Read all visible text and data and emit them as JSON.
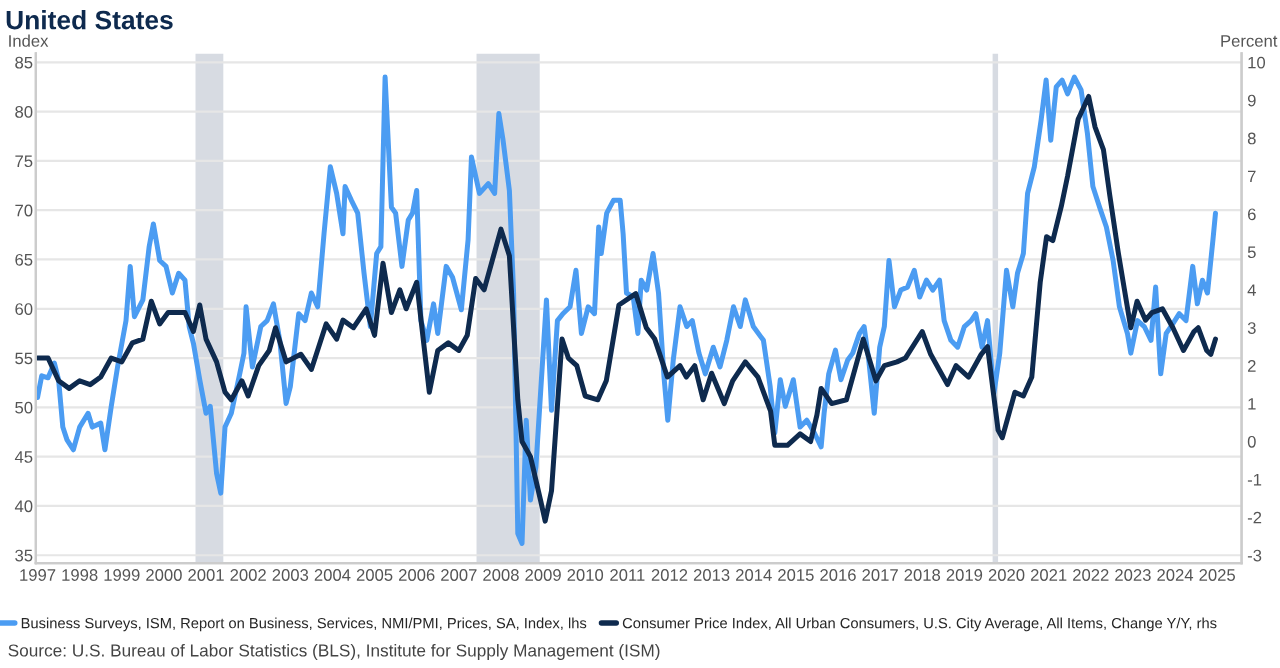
{
  "chart_data": {
    "type": "line",
    "title": "United States",
    "ylabel": "Index",
    "y2label": "Percent",
    "xlim": [
      1997.46,
      2026.08
    ],
    "ylim": [
      34.2,
      85.9
    ],
    "y2lim": [
      -3.208,
      10.234
    ],
    "xticks": [
      {
        "value": 1997.5,
        "label": "1997"
      },
      {
        "value": 1998.5,
        "label": "1998"
      },
      {
        "value": 1999.5,
        "label": "1999"
      },
      {
        "value": 2000.5,
        "label": "2000"
      },
      {
        "value": 2001.5,
        "label": "2001"
      },
      {
        "value": 2002.5,
        "label": "2002"
      },
      {
        "value": 2003.5,
        "label": "2003"
      },
      {
        "value": 2004.5,
        "label": "2004"
      },
      {
        "value": 2005.5,
        "label": "2005"
      },
      {
        "value": 2006.5,
        "label": "2006"
      },
      {
        "value": 2007.5,
        "label": "2007"
      },
      {
        "value": 2008.5,
        "label": "2008"
      },
      {
        "value": 2009.5,
        "label": "2009"
      },
      {
        "value": 2010.5,
        "label": "2010"
      },
      {
        "value": 2011.5,
        "label": "2011"
      },
      {
        "value": 2012.5,
        "label": "2012"
      },
      {
        "value": 2013.5,
        "label": "2013"
      },
      {
        "value": 2014.5,
        "label": "2014"
      },
      {
        "value": 2015.5,
        "label": "2015"
      },
      {
        "value": 2016.5,
        "label": "2016"
      },
      {
        "value": 2017.5,
        "label": "2017"
      },
      {
        "value": 2018.5,
        "label": "2018"
      },
      {
        "value": 2019.5,
        "label": "2019"
      },
      {
        "value": 2020.5,
        "label": "2020"
      },
      {
        "value": 2021.5,
        "label": "2021"
      },
      {
        "value": 2022.5,
        "label": "2022"
      },
      {
        "value": 2023.5,
        "label": "2023"
      },
      {
        "value": 2024.5,
        "label": "2024"
      },
      {
        "value": 2025.5,
        "label": "2025"
      }
    ],
    "yticks": [
      35,
      40,
      45,
      50,
      55,
      60,
      65,
      70,
      75,
      80,
      85
    ],
    "y2ticks": [
      -3,
      -2,
      -1,
      0,
      1,
      2,
      3,
      4,
      5,
      6,
      7,
      8,
      9,
      10
    ],
    "grid": "y",
    "legend": "bottom",
    "bands": [
      {
        "axis": "x",
        "from": 2001.25,
        "to": 2001.91,
        "color": "#d7dbe2"
      },
      {
        "axis": "x",
        "from": 2007.92,
        "to": 2009.42,
        "color": "#d7dbe2"
      },
      {
        "axis": "x",
        "from": 2020.17,
        "to": 2020.3,
        "color": "#d7dbe2"
      }
    ],
    "series": [
      {
        "name": "Business Surveys, ISM, Report on Business, Services, NMI/PMI, Prices, SA, Index, lhs",
        "color": "#4b9cf2",
        "axis": "y",
        "x": [
          1997.5,
          1997.6,
          1997.75,
          1997.9,
          1998.0,
          1998.1,
          1998.2,
          1998.35,
          1998.5,
          1998.7,
          1998.8,
          1999.0,
          1999.1,
          1999.25,
          1999.4,
          1999.6,
          1999.7,
          1999.8,
          2000.0,
          2000.15,
          2000.25,
          2000.4,
          2000.55,
          2000.7,
          2000.85,
          2001.0,
          2001.1,
          2001.2,
          2001.35,
          2001.5,
          2001.6,
          2001.75,
          2001.85,
          2001.95,
          2002.1,
          2002.3,
          2002.4,
          2002.45,
          2002.6,
          2002.8,
          2002.95,
          2003.1,
          2003.25,
          2003.4,
          2003.5,
          2003.7,
          2003.85,
          2004.0,
          2004.15,
          2004.3,
          2004.45,
          2004.6,
          2004.75,
          2004.8,
          2004.95,
          2005.1,
          2005.25,
          2005.4,
          2005.55,
          2005.65,
          2005.75,
          2005.9,
          2006.0,
          2006.15,
          2006.3,
          2006.4,
          2006.5,
          2006.6,
          2006.74,
          2006.9,
          2007.0,
          2007.2,
          2007.35,
          2007.56,
          2007.72,
          2007.8,
          2007.99,
          2008.2,
          2008.35,
          2008.45,
          2008.55,
          2008.7,
          2008.8,
          2008.9,
          2009.0,
          2009.1,
          2009.2,
          2009.33,
          2009.46,
          2009.58,
          2009.7,
          2009.84,
          2009.97,
          2010.14,
          2010.28,
          2010.41,
          2010.57,
          2010.72,
          2010.82,
          2010.88,
          2011.01,
          2011.17,
          2011.33,
          2011.4,
          2011.48,
          2011.64,
          2011.75,
          2011.83,
          2011.96,
          2012.11,
          2012.24,
          2012.37,
          2012.46,
          2012.59,
          2012.75,
          2012.91,
          2013.04,
          2013.2,
          2013.35,
          2013.54,
          2013.7,
          2013.86,
          2014.02,
          2014.18,
          2014.3,
          2014.49,
          2014.73,
          2014.89,
          2015.0,
          2015.13,
          2015.25,
          2015.44,
          2015.6,
          2015.76,
          2015.94,
          2016.1,
          2016.17,
          2016.28,
          2016.44,
          2016.57,
          2016.73,
          2016.85,
          2017.01,
          2017.12,
          2017.23,
          2017.36,
          2017.49,
          2017.6,
          2017.71,
          2017.84,
          2017.99,
          2018.15,
          2018.31,
          2018.44,
          2018.6,
          2018.75,
          2018.91,
          2019.02,
          2019.18,
          2019.34,
          2019.5,
          2019.66,
          2019.77,
          2019.92,
          2020.05,
          2020.2,
          2020.34,
          2020.5,
          2020.65,
          2020.76,
          2020.9,
          2021.0,
          2021.16,
          2021.32,
          2021.44,
          2021.55,
          2021.68,
          2021.82,
          2021.95,
          2022.11,
          2022.27,
          2022.42,
          2022.55,
          2022.71,
          2022.87,
          2023.03,
          2023.18,
          2023.37,
          2023.45,
          2023.61,
          2023.77,
          2023.93,
          2024.04,
          2024.16,
          2024.29,
          2024.45,
          2024.6,
          2024.76,
          2024.92,
          2025.03,
          2025.15,
          2025.27,
          2025.4,
          2025.46
        ],
        "values": [
          51.0,
          53.2,
          53.0,
          54.5,
          52.8,
          48.0,
          46.7,
          45.7,
          48.0,
          49.4,
          48.0,
          48.4,
          45.7,
          50.1,
          54.1,
          58.8,
          64.3,
          59.2,
          60.9,
          66.3,
          68.6,
          64.9,
          64.3,
          61.6,
          63.6,
          62.9,
          58.2,
          56.5,
          52.8,
          49.4,
          50.1,
          43.3,
          41.3,
          48.0,
          49.4,
          53.4,
          55.5,
          60.2,
          54.1,
          58.2,
          58.8,
          60.5,
          56.8,
          50.4,
          52.1,
          59.5,
          58.8,
          61.6,
          60.2,
          67.6,
          74.4,
          71.7,
          67.6,
          72.4,
          71.0,
          69.7,
          63.6,
          58.2,
          65.6,
          66.3,
          83.5,
          70.3,
          69.7,
          64.3,
          69.0,
          69.7,
          72.0,
          58.8,
          56.8,
          60.5,
          57.5,
          64.3,
          63.2,
          59.9,
          67.0,
          75.4,
          71.7,
          72.7,
          71.7,
          79.8,
          77.1,
          72.0,
          61.6,
          37.2,
          36.2,
          48.7,
          40.6,
          44.0,
          52.8,
          60.9,
          49.7,
          58.8,
          59.5,
          60.2,
          63.9,
          57.5,
          60.2,
          59.5,
          68.3,
          65.6,
          69.7,
          71.0,
          71.0,
          67.6,
          61.6,
          61.2,
          57.5,
          62.9,
          61.9,
          65.6,
          61.6,
          53.1,
          48.7,
          54.8,
          60.2,
          58.2,
          58.8,
          55.5,
          53.4,
          56.1,
          54.1,
          56.8,
          60.2,
          58.2,
          60.9,
          58.2,
          56.8,
          52.1,
          47.4,
          52.8,
          50.1,
          52.8,
          48.0,
          48.7,
          47.4,
          46.0,
          49.4,
          53.4,
          55.8,
          52.8,
          54.8,
          55.5,
          57.5,
          58.2,
          54.8,
          49.4,
          56.1,
          58.2,
          64.9,
          60.2,
          61.9,
          62.2,
          63.9,
          61.2,
          62.9,
          61.9,
          62.9,
          58.8,
          56.8,
          56.1,
          58.2,
          58.8,
          59.5,
          56.1,
          58.8,
          51.4,
          55.5,
          63.9,
          60.2,
          63.6,
          65.6,
          71.7,
          74.4,
          79.1,
          83.2,
          77.1,
          82.5,
          83.2,
          81.8,
          83.5,
          82.2,
          77.8,
          72.4,
          70.3,
          68.3,
          64.9,
          60.2,
          57.5,
          55.5,
          58.8,
          58.2,
          56.8,
          62.2,
          53.4,
          57.5,
          58.5,
          59.5,
          58.8,
          64.3,
          60.5,
          62.9,
          61.6,
          67.0,
          69.7
        ]
      },
      {
        "name": "Consumer Price Index, All Urban Consumers, U.S. City Average, All Items, Change Y/Y, rhs",
        "color": "#0e2a4e",
        "axis": "y2",
        "x": [
          1997.5,
          1997.75,
          1998.0,
          1998.25,
          1998.5,
          1998.75,
          1999.0,
          1999.25,
          1999.5,
          1999.75,
          2000.0,
          2000.2,
          2000.4,
          2000.6,
          2000.8,
          2001.0,
          2001.2,
          2001.35,
          2001.5,
          2001.75,
          2001.95,
          2002.1,
          2002.35,
          2002.5,
          2002.75,
          2003.0,
          2003.15,
          2003.4,
          2003.75,
          2004.0,
          2004.35,
          2004.6,
          2004.75,
          2005.0,
          2005.3,
          2005.5,
          2005.7,
          2005.9,
          2006.1,
          2006.25,
          2006.5,
          2006.8,
          2007.0,
          2007.25,
          2007.5,
          2007.7,
          2007.9,
          2008.1,
          2008.5,
          2008.7,
          2008.9,
          2009.0,
          2009.2,
          2009.45,
          2009.55,
          2009.7,
          2009.95,
          2010.1,
          2010.3,
          2010.5,
          2010.8,
          2011.0,
          2011.3,
          2011.7,
          2011.95,
          2012.15,
          2012.45,
          2012.75,
          2012.9,
          2013.1,
          2013.3,
          2013.5,
          2013.8,
          2014.0,
          2014.3,
          2014.6,
          2014.9,
          2015.0,
          2015.3,
          2015.6,
          2015.85,
          2016.0,
          2016.1,
          2016.35,
          2016.7,
          2016.95,
          2017.1,
          2017.4,
          2017.6,
          2017.9,
          2018.1,
          2018.5,
          2018.7,
          2018.9,
          2019.1,
          2019.3,
          2019.6,
          2019.9,
          2020.05,
          2020.3,
          2020.4,
          2020.7,
          2020.9,
          2021.1,
          2021.3,
          2021.45,
          2021.6,
          2021.8,
          2021.95,
          2022.2,
          2022.45,
          2022.6,
          2022.8,
          2022.95,
          2023.15,
          2023.3,
          2023.45,
          2023.6,
          2023.8,
          2023.95,
          2024.2,
          2024.45,
          2024.7,
          2024.95,
          2025.05,
          2025.25,
          2025.35,
          2025.46
        ],
        "values": [
          2.2,
          2.2,
          1.6,
          1.4,
          1.6,
          1.5,
          1.7,
          2.2,
          2.1,
          2.6,
          2.7,
          3.7,
          3.1,
          3.4,
          3.4,
          3.4,
          2.9,
          3.6,
          2.7,
          2.1,
          1.3,
          1.1,
          1.6,
          1.2,
          2.0,
          2.4,
          3.0,
          2.1,
          2.3,
          1.9,
          3.1,
          2.7,
          3.2,
          3.0,
          3.5,
          2.8,
          4.7,
          3.4,
          4.0,
          3.5,
          4.2,
          1.3,
          2.4,
          2.6,
          2.4,
          2.8,
          4.3,
          4.0,
          5.6,
          4.9,
          1.1,
          0.0,
          -0.4,
          -1.6,
          -2.1,
          -1.3,
          2.7,
          2.2,
          2.0,
          1.2,
          1.1,
          1.6,
          3.6,
          3.9,
          3.0,
          2.7,
          1.7,
          2.0,
          1.7,
          2.0,
          1.1,
          1.8,
          1.0,
          1.6,
          2.1,
          1.7,
          0.8,
          -0.1,
          -0.1,
          0.2,
          0.0,
          0.7,
          1.4,
          1.0,
          1.1,
          2.1,
          2.7,
          1.6,
          2.0,
          2.1,
          2.2,
          2.9,
          2.3,
          1.9,
          1.5,
          2.0,
          1.7,
          2.3,
          2.5,
          0.3,
          0.1,
          1.3,
          1.2,
          1.7,
          4.2,
          5.4,
          5.3,
          6.2,
          7.0,
          8.5,
          9.1,
          8.3,
          7.7,
          6.5,
          5.0,
          4.0,
          3.0,
          3.7,
          3.2,
          3.4,
          3.5,
          3.0,
          2.4,
          2.9,
          3.0,
          2.4,
          2.3,
          2.7
        ]
      }
    ],
    "annotations": [
      "Source: U.S. Bureau of Labor Statistics (BLS), Institute for Supply Management (ISM)"
    ]
  }
}
